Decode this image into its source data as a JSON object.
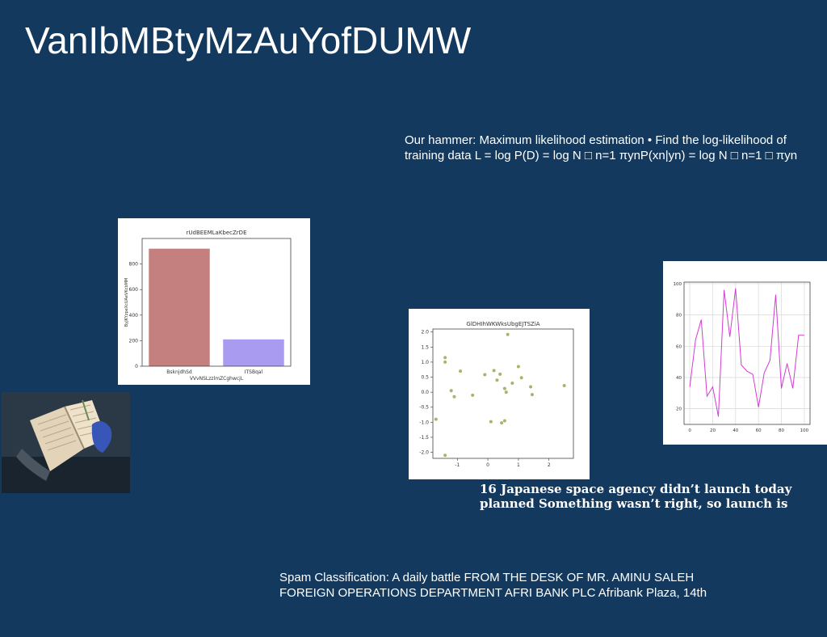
{
  "title": "VanIbMBtyMzAuYofDUMW",
  "hammer": {
    "line1": "Our hammer: Maximum likelihood estimation • Find the log-likelihood of",
    "line2": "training data L = log P(D) = log N □ n=1 πynP(xn|yn) = log N □ n=1 □ πyn"
  },
  "jaxa": {
    "line1": "16 Japanese space agency didn’t launch today",
    "line2": "planned Something wasn’t right, so launch is"
  },
  "spam": {
    "line1": "Spam Classification: A daily battle FROM THE DESK OF MR. AMINU SALEH",
    "line2": "FOREIGN OPERATIONS DEPARTMENT AFRI BANK PLC Afribank Plaza, 14th"
  },
  "chart_data": [
    {
      "type": "bar",
      "title": "rUdBEEMLaKbecZrDE",
      "xlabel": "VVvNSLzzlmZCghwcjL",
      "ylabel": "ByJKYzpeXcUAeVKcbMM",
      "categories": [
        "BsknjdhSd",
        "ITSBqal"
      ],
      "values": [
        920,
        210
      ],
      "colors": [
        "#c3807f",
        "#a89bf0"
      ],
      "ylim": [
        0,
        1000
      ],
      "yticks": [
        0,
        200,
        400,
        600,
        800
      ]
    },
    {
      "type": "scatter",
      "title": "GlDHIhWKWksUbgEJTSZiA",
      "color": "#a8b46a",
      "xlim": [
        -1.8,
        2.8
      ],
      "ylim": [
        -2.2,
        2.1
      ],
      "xticks": [
        -1,
        0,
        1,
        2
      ],
      "yticks": [
        -2.0,
        -1.5,
        -1.0,
        -0.5,
        0.0,
        0.5,
        1.0,
        1.5,
        2.0
      ],
      "points": [
        [
          -1.7,
          -0.9
        ],
        [
          -1.4,
          1.15
        ],
        [
          -1.4,
          1.0
        ],
        [
          -1.4,
          -2.1
        ],
        [
          -1.2,
          0.05
        ],
        [
          -1.1,
          -0.15
        ],
        [
          -0.9,
          0.7
        ],
        [
          -0.5,
          -0.1
        ],
        [
          -0.1,
          0.58
        ],
        [
          0.1,
          -0.98
        ],
        [
          0.2,
          0.72
        ],
        [
          0.3,
          0.4
        ],
        [
          0.4,
          0.6
        ],
        [
          0.45,
          -1.02
        ],
        [
          0.55,
          -0.95
        ],
        [
          0.55,
          0.12
        ],
        [
          0.6,
          0.0
        ],
        [
          0.65,
          1.92
        ],
        [
          0.8,
          0.3
        ],
        [
          1.0,
          0.85
        ],
        [
          1.1,
          0.48
        ],
        [
          1.4,
          0.18
        ],
        [
          1.45,
          -0.08
        ],
        [
          2.5,
          0.22
        ]
      ]
    },
    {
      "type": "line",
      "color": "#d23cd2",
      "xlim": [
        -5,
        105
      ],
      "ylim": [
        10,
        101
      ],
      "xticks": [
        0,
        20,
        40,
        60,
        80,
        100
      ],
      "yticks": [
        20,
        40,
        60,
        80,
        100
      ],
      "x": [
        0,
        5,
        10,
        15,
        20,
        25,
        30,
        35,
        40,
        45,
        50,
        55,
        60,
        65,
        70,
        75,
        80,
        85,
        90,
        95,
        100
      ],
      "y": [
        34,
        64,
        77,
        28,
        34,
        15,
        96,
        66,
        97,
        48,
        44,
        42,
        21,
        43,
        51,
        93,
        33,
        49,
        33,
        67,
        67
      ]
    }
  ]
}
